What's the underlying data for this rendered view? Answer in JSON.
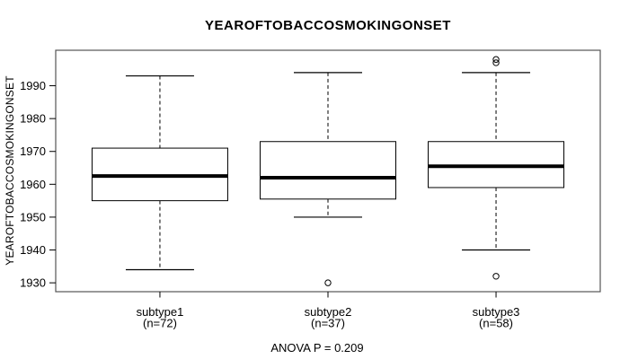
{
  "page": {
    "background": "#ffffff"
  },
  "chart_data": {
    "type": "boxplot",
    "title": "YEAROFTOBACCOSMOKINGONSET",
    "ylabel": "YEAROFTOBACCOSMOKINGONSET",
    "xlabel": "",
    "footer": "ANOVA P = 0.209",
    "ylim": [
      1927.3,
      2000.8
    ],
    "yticks": [
      1930,
      1940,
      1950,
      1960,
      1970,
      1980,
      1990
    ],
    "grid": false,
    "legend": "none",
    "groups": [
      {
        "label": "subtype1",
        "sublabel": "(n=72)",
        "n": 72,
        "whisker_low": 1934,
        "q1": 1955,
        "median": 1962.5,
        "q3": 1971,
        "whisker_high": 1993,
        "outliers": []
      },
      {
        "label": "subtype2",
        "sublabel": "(n=37)",
        "n": 37,
        "whisker_low": 1950,
        "q1": 1955.5,
        "median": 1962,
        "q3": 1973,
        "whisker_high": 1994,
        "outliers": [
          1930
        ]
      },
      {
        "label": "subtype3",
        "sublabel": "(n=58)",
        "n": 58,
        "whisker_low": 1940,
        "q1": 1959,
        "median": 1965.5,
        "q3": 1973,
        "whisker_high": 1994,
        "outliers": [
          1932,
          1997,
          1998
        ]
      }
    ],
    "colors": {
      "line": "#000000",
      "box_fill": "#ffffff",
      "frame": "#555555",
      "text": "#000000",
      "background": "#ffffff"
    }
  }
}
